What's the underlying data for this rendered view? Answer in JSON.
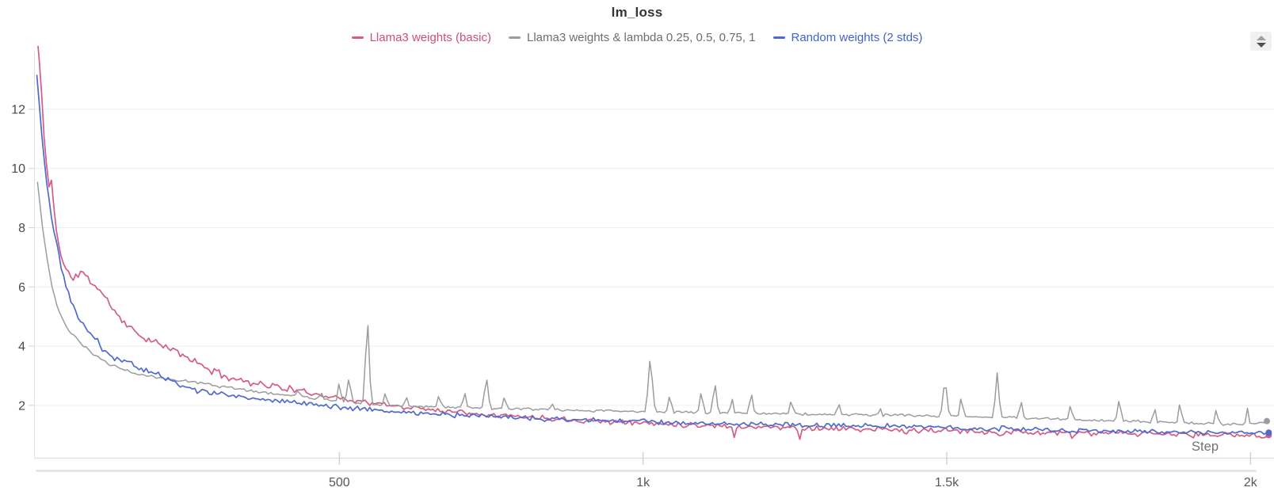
{
  "window": {
    "background": "#ffffff"
  },
  "controls": {
    "sort_icon": "up-down-triangles",
    "legend_swatch_icon": "line-dash"
  },
  "chart_data": {
    "type": "line",
    "title": "lm_loss",
    "xlabel": "Step",
    "ylabel": "",
    "xlim": [
      0,
      2040
    ],
    "ylim": [
      0.23,
      13.95
    ],
    "grid": "horizontal-only",
    "legend_position": "top-center",
    "x_ticks": [
      {
        "value": 500,
        "label": "500"
      },
      {
        "value": 1000,
        "label": "1k"
      },
      {
        "value": 1500,
        "label": "1.5k"
      },
      {
        "value": 2000,
        "label": "2k"
      }
    ],
    "y_ticks": [
      {
        "value": 2,
        "label": "2"
      },
      {
        "value": 4,
        "label": "4"
      },
      {
        "value": 6,
        "label": "6"
      },
      {
        "value": 8,
        "label": "8"
      },
      {
        "value": 10,
        "label": "10"
      },
      {
        "value": 12,
        "label": "12"
      }
    ],
    "sample_step": 4,
    "series": [
      {
        "name": "Llama3 weights (basic)",
        "color": "#d45c85",
        "label_color": "#cb4f78",
        "noise": 0.11,
        "seed": 11,
        "width": 1.7,
        "end_marker": true,
        "anchors": [
          [
            2,
            14.6
          ],
          [
            6,
            13.6
          ],
          [
            10,
            12.4
          ],
          [
            14,
            11.1
          ],
          [
            18,
            10.1
          ],
          [
            22,
            9.35
          ],
          [
            26,
            9.6
          ],
          [
            30,
            8.7
          ],
          [
            34,
            8.0
          ],
          [
            40,
            7.2
          ],
          [
            46,
            6.75
          ],
          [
            52,
            6.5
          ],
          [
            60,
            6.3
          ],
          [
            68,
            6.35
          ],
          [
            76,
            6.55
          ],
          [
            84,
            6.3
          ],
          [
            92,
            6.15
          ],
          [
            100,
            6.0
          ],
          [
            108,
            5.85
          ],
          [
            116,
            5.6
          ],
          [
            124,
            5.35
          ],
          [
            134,
            5.1
          ],
          [
            144,
            4.85
          ],
          [
            154,
            4.65
          ],
          [
            166,
            4.45
          ],
          [
            180,
            4.28
          ],
          [
            196,
            4.12
          ],
          [
            212,
            3.98
          ],
          [
            228,
            3.85
          ],
          [
            244,
            3.68
          ],
          [
            260,
            3.5
          ],
          [
            276,
            3.32
          ],
          [
            292,
            3.15
          ],
          [
            308,
            3.02
          ],
          [
            324,
            2.92
          ],
          [
            344,
            2.82
          ],
          [
            364,
            2.75
          ],
          [
            384,
            2.68
          ],
          [
            404,
            2.6
          ],
          [
            430,
            2.5
          ],
          [
            458,
            2.4
          ],
          [
            486,
            2.3
          ],
          [
            515,
            2.2
          ],
          [
            545,
            2.1
          ],
          [
            580,
            2.0
          ],
          [
            620,
            1.92
          ],
          [
            660,
            1.85
          ],
          [
            700,
            1.78
          ],
          [
            740,
            1.71
          ],
          [
            780,
            1.65
          ],
          [
            820,
            1.6
          ],
          [
            860,
            1.55
          ],
          [
            900,
            1.5
          ],
          [
            950,
            1.45
          ],
          [
            1000,
            1.4
          ],
          [
            1060,
            1.36
          ],
          [
            1120,
            1.32
          ],
          [
            1180,
            1.28
          ],
          [
            1240,
            1.25
          ],
          [
            1300,
            1.22
          ],
          [
            1360,
            1.19
          ],
          [
            1420,
            1.17
          ],
          [
            1480,
            1.15
          ],
          [
            1540,
            1.12
          ],
          [
            1600,
            1.1
          ],
          [
            1660,
            1.08
          ],
          [
            1720,
            1.06
          ],
          [
            1780,
            1.05
          ],
          [
            1840,
            1.03
          ],
          [
            1900,
            1.02
          ],
          [
            1960,
            1.0
          ],
          [
            2030,
            0.98
          ]
        ],
        "spikes": [
          [
            1150,
            0.9,
            5
          ],
          [
            1258,
            0.86,
            5
          ],
          [
            1432,
            0.9,
            5
          ],
          [
            1588,
            0.88,
            5
          ],
          [
            1706,
            0.86,
            5
          ],
          [
            1905,
            0.87,
            5
          ]
        ]
      },
      {
        "name": "Llama3 weights & lambda 0.25, 0.5, 0.75, 1",
        "color": "#9a9da0",
        "label_color": "#6d6d6d",
        "noise": 0.05,
        "seed": 23,
        "width": 1.5,
        "end_marker": true,
        "anchors": [
          [
            3,
            9.6
          ],
          [
            8,
            8.6
          ],
          [
            14,
            7.6
          ],
          [
            20,
            6.8
          ],
          [
            28,
            5.9
          ],
          [
            36,
            5.3
          ],
          [
            44,
            4.9
          ],
          [
            54,
            4.55
          ],
          [
            64,
            4.3
          ],
          [
            76,
            4.05
          ],
          [
            90,
            3.8
          ],
          [
            104,
            3.6
          ],
          [
            120,
            3.42
          ],
          [
            140,
            3.25
          ],
          [
            160,
            3.1
          ],
          [
            185,
            2.98
          ],
          [
            210,
            2.9
          ],
          [
            240,
            2.85
          ],
          [
            270,
            2.78
          ],
          [
            300,
            2.65
          ],
          [
            335,
            2.55
          ],
          [
            370,
            2.45
          ],
          [
            410,
            2.35
          ],
          [
            450,
            2.27
          ],
          [
            500,
            2.12
          ],
          [
            560,
            2.02
          ],
          [
            620,
            1.97
          ],
          [
            690,
            1.93
          ],
          [
            760,
            1.89
          ],
          [
            830,
            1.86
          ],
          [
            900,
            1.83
          ],
          [
            970,
            1.8
          ],
          [
            1040,
            1.78
          ],
          [
            1110,
            1.76
          ],
          [
            1180,
            1.73
          ],
          [
            1250,
            1.71
          ],
          [
            1320,
            1.69
          ],
          [
            1390,
            1.67
          ],
          [
            1460,
            1.65
          ],
          [
            1530,
            1.63
          ],
          [
            1600,
            1.58
          ],
          [
            1670,
            1.54
          ],
          [
            1740,
            1.5
          ],
          [
            1810,
            1.46
          ],
          [
            1880,
            1.42
          ],
          [
            1940,
            1.38
          ],
          [
            1990,
            1.34
          ],
          [
            2012,
            1.38
          ],
          [
            2030,
            1.45
          ]
        ],
        "spikes": [
          [
            432,
            2.55,
            6
          ],
          [
            470,
            2.45,
            6
          ],
          [
            500,
            2.9,
            6
          ],
          [
            516,
            3.0,
            8
          ],
          [
            546,
            5.3,
            8
          ],
          [
            576,
            2.5,
            6
          ],
          [
            610,
            2.35,
            6
          ],
          [
            664,
            2.4,
            6
          ],
          [
            706,
            2.55,
            6
          ],
          [
            742,
            3.05,
            8
          ],
          [
            772,
            2.35,
            6
          ],
          [
            850,
            2.1,
            5
          ],
          [
            1012,
            3.8,
            9
          ],
          [
            1044,
            2.45,
            6
          ],
          [
            1096,
            2.6,
            6
          ],
          [
            1118,
            2.9,
            7
          ],
          [
            1146,
            2.4,
            5
          ],
          [
            1178,
            2.5,
            7
          ],
          [
            1244,
            2.25,
            6
          ],
          [
            1322,
            2.1,
            6
          ],
          [
            1390,
            1.95,
            5
          ],
          [
            1497,
            3.1,
            8
          ],
          [
            1524,
            2.4,
            6
          ],
          [
            1583,
            3.1,
            8
          ],
          [
            1622,
            2.25,
            6
          ],
          [
            1704,
            2.1,
            6
          ],
          [
            1784,
            2.3,
            7
          ],
          [
            1842,
            2.05,
            5
          ],
          [
            1884,
            2.2,
            6
          ],
          [
            1944,
            2.0,
            5
          ],
          [
            1995,
            1.9,
            5
          ]
        ]
      },
      {
        "name": "Random weights (2 stds)",
        "color": "#5069cf",
        "label_color": "#4263c7",
        "noise": 0.1,
        "seed": 5,
        "width": 1.7,
        "end_marker": true,
        "anchors": [
          [
            2,
            13.1
          ],
          [
            6,
            12.2
          ],
          [
            10,
            11.2
          ],
          [
            14,
            10.3
          ],
          [
            18,
            9.5
          ],
          [
            24,
            8.6
          ],
          [
            30,
            7.9
          ],
          [
            36,
            7.3
          ],
          [
            42,
            6.7
          ],
          [
            48,
            6.2
          ],
          [
            54,
            5.8
          ],
          [
            60,
            5.45
          ],
          [
            66,
            5.15
          ],
          [
            72,
            4.9
          ],
          [
            80,
            4.65
          ],
          [
            88,
            4.45
          ],
          [
            96,
            4.3
          ],
          [
            102,
            4.2
          ],
          [
            106,
            4.0
          ],
          [
            112,
            3.85
          ],
          [
            120,
            3.72
          ],
          [
            132,
            3.6
          ],
          [
            146,
            3.48
          ],
          [
            162,
            3.35
          ],
          [
            180,
            3.2
          ],
          [
            200,
            3.05
          ],
          [
            222,
            2.85
          ],
          [
            246,
            2.62
          ],
          [
            270,
            2.5
          ],
          [
            296,
            2.42
          ],
          [
            322,
            2.33
          ],
          [
            350,
            2.26
          ],
          [
            380,
            2.2
          ],
          [
            412,
            2.14
          ],
          [
            446,
            2.06
          ],
          [
            482,
            1.98
          ],
          [
            520,
            1.9
          ],
          [
            560,
            1.84
          ],
          [
            600,
            1.78
          ],
          [
            645,
            1.73
          ],
          [
            690,
            1.68
          ],
          [
            740,
            1.63
          ],
          [
            790,
            1.59
          ],
          [
            840,
            1.55
          ],
          [
            890,
            1.51
          ],
          [
            940,
            1.48
          ],
          [
            1000,
            1.45
          ],
          [
            1060,
            1.42
          ],
          [
            1120,
            1.39
          ],
          [
            1180,
            1.37
          ],
          [
            1250,
            1.35
          ],
          [
            1320,
            1.33
          ],
          [
            1390,
            1.3
          ],
          [
            1460,
            1.27
          ],
          [
            1530,
            1.24
          ],
          [
            1600,
            1.21
          ],
          [
            1670,
            1.18
          ],
          [
            1740,
            1.15
          ],
          [
            1810,
            1.13
          ],
          [
            1880,
            1.11
          ],
          [
            1950,
            1.08
          ],
          [
            2030,
            1.06
          ]
        ],
        "spikes": []
      }
    ]
  }
}
